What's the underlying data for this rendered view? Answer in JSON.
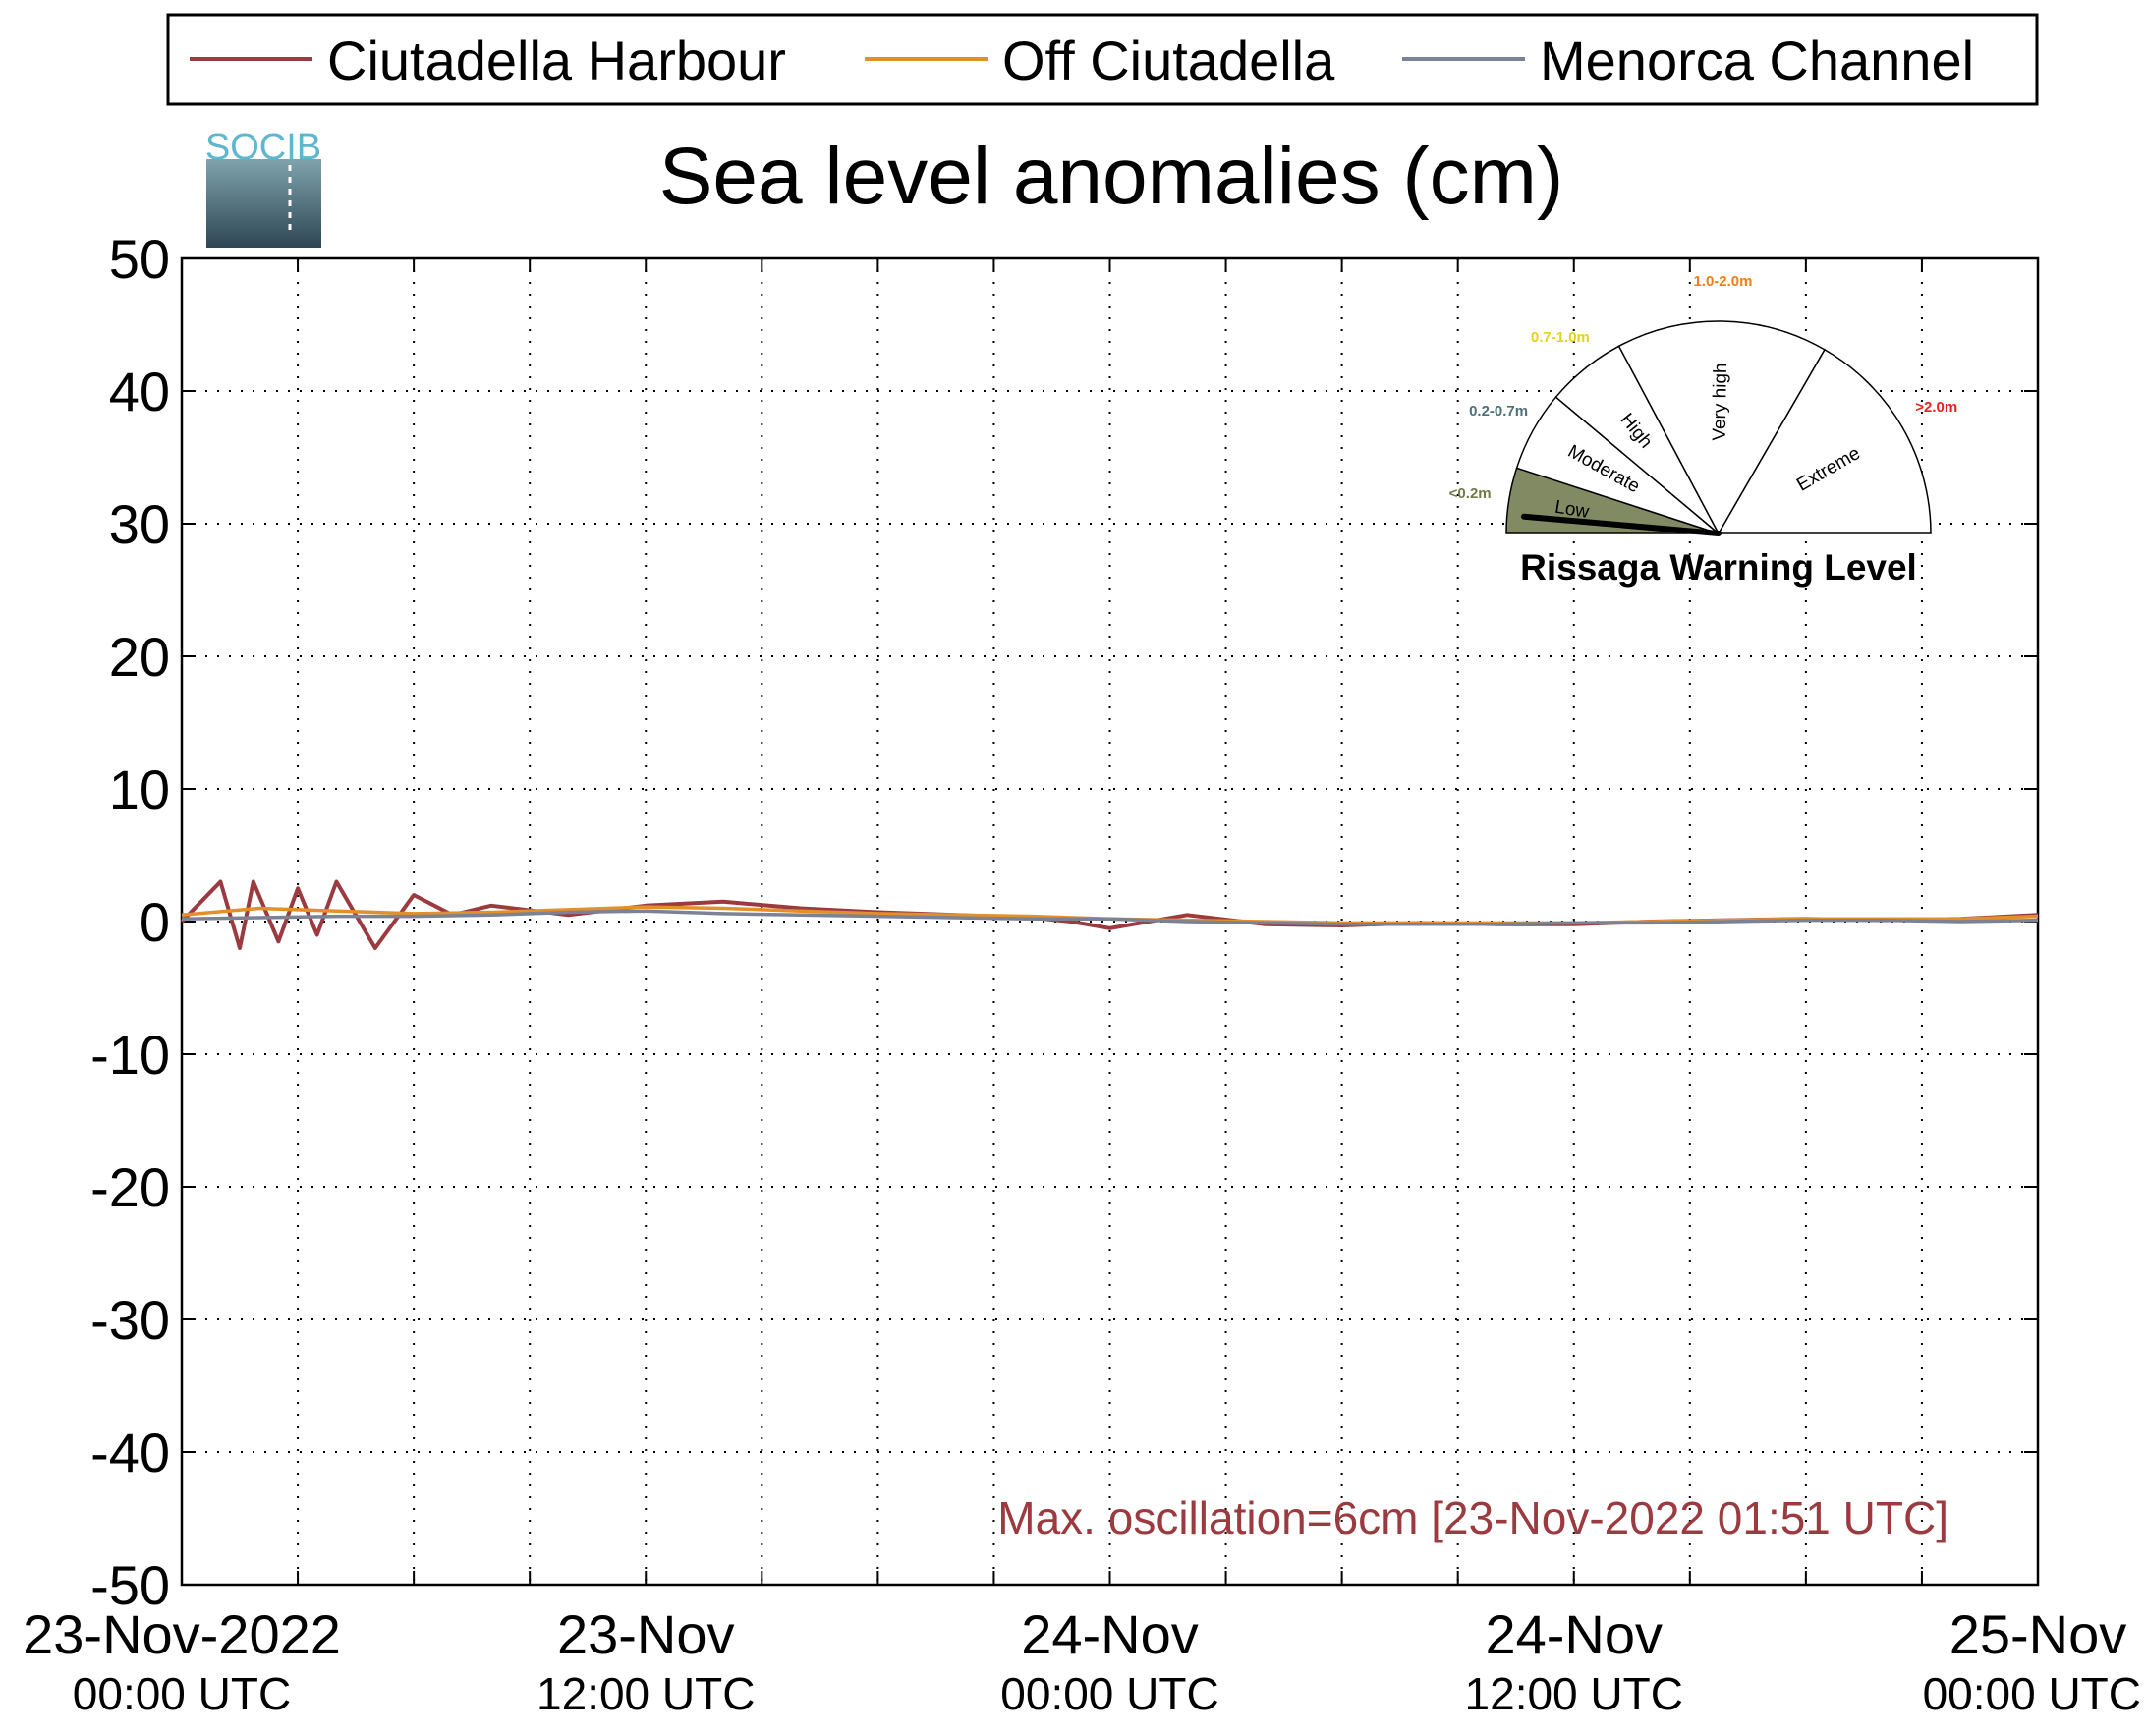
{
  "legend": {
    "entries": [
      {
        "label": "Ciutadella Harbour",
        "color": "#9b3a3f"
      },
      {
        "label": "Off Ciutadella",
        "color": "#e3902a"
      },
      {
        "label": "Menorca Channel",
        "color": "#7b8296"
      }
    ]
  },
  "logo": {
    "text": "SOCIB",
    "color": "#5fb6cf",
    "gradient_top": "#7fa3ad",
    "gradient_bottom": "#2e4654"
  },
  "annotation": {
    "text": "Max. oscillation=6cm [23-Nov-2022 01:51 UTC]",
    "color": "#9b3a3f"
  },
  "gauge": {
    "title": "Rissaga Warning Level",
    "needle_level": "Low",
    "sectors": [
      {
        "name": "Low",
        "range": "<0.2m",
        "range_color": "#6e7c48",
        "fill": "#818a62",
        "filled": true
      },
      {
        "name": "Moderate",
        "range": "0.2-0.7m",
        "range_color": "#4f6f79",
        "fill": "#ffffff",
        "filled": false
      },
      {
        "name": "High",
        "range": "0.7-1.0m",
        "range_color": "#e6d21c",
        "fill": "#ffffff",
        "filled": false
      },
      {
        "name": "Very high",
        "range": "1.0-2.0m",
        "range_color": "#f07f12",
        "fill": "#ffffff",
        "filled": false
      },
      {
        "name": "Extreme",
        "range": ">2.0m",
        "range_color": "#e8211c",
        "fill": "#ffffff",
        "filled": false
      }
    ]
  },
  "chart_data": {
    "type": "line",
    "title": "Sea level anomalies (cm)",
    "xlabel": "",
    "ylabel": "",
    "ylim": [
      -50,
      50
    ],
    "yticks": [
      50,
      40,
      30,
      20,
      10,
      0,
      -10,
      -20,
      -30,
      -40,
      -50
    ],
    "xlim": [
      "2022-11-23 00:00",
      "2022-11-25 00:00"
    ],
    "xticks": [
      {
        "t": "2022-11-23 00:00",
        "line1": "23-Nov-2022",
        "line2": "00:00 UTC"
      },
      {
        "t": "2022-11-23 12:00",
        "line1": "23-Nov",
        "line2": "12:00 UTC"
      },
      {
        "t": "2022-11-24 00:00",
        "line1": "24-Nov",
        "line2": "00:00 UTC"
      },
      {
        "t": "2022-11-24 12:00",
        "line1": "24-Nov",
        "line2": "12:00 UTC"
      },
      {
        "t": "2022-11-25 00:00",
        "line1": "25-Nov",
        "line2": "00:00 UTC"
      }
    ],
    "grid": true,
    "legend_position": "top",
    "series": [
      {
        "name": "Ciutadella Harbour",
        "color": "#9b3a3f",
        "x": [
          "2022-11-23 00:00",
          "2022-11-23 00:30",
          "2022-11-23 01:00",
          "2022-11-23 01:30",
          "2022-11-23 01:51",
          "2022-11-23 02:30",
          "2022-11-23 03:00",
          "2022-11-23 03:30",
          "2022-11-23 04:00",
          "2022-11-23 05:00",
          "2022-11-23 06:00",
          "2022-11-23 07:00",
          "2022-11-23 08:00",
          "2022-11-23 10:00",
          "2022-11-23 12:00",
          "2022-11-23 14:00",
          "2022-11-23 16:00",
          "2022-11-23 18:00",
          "2022-11-23 20:00",
          "2022-11-23 22:00",
          "2022-11-23 23:00",
          "2022-11-24 00:00",
          "2022-11-24 02:00",
          "2022-11-24 04:00",
          "2022-11-24 06:00",
          "2022-11-24 08:00",
          "2022-11-24 10:00",
          "2022-11-24 12:00",
          "2022-11-24 14:00",
          "2022-11-24 16:00",
          "2022-11-24 18:00",
          "2022-11-24 20:00",
          "2022-11-24 22:00",
          "2022-11-25 00:00"
        ],
        "y": [
          0,
          1.5,
          3,
          -2,
          3,
          -1.5,
          2.5,
          -1,
          3,
          -2,
          2,
          0.5,
          1.2,
          0.5,
          1.2,
          1.5,
          1.0,
          0.7,
          0.5,
          0.3,
          0,
          -0.5,
          0.5,
          -0.2,
          -0.3,
          -0.1,
          -0.2,
          -0.2,
          0,
          0.1,
          0.2,
          0.1,
          0.2,
          0.5
        ]
      },
      {
        "name": "Off Ciutadella",
        "color": "#e3902a",
        "x": [
          "2022-11-23 00:00",
          "2022-11-23 02:00",
          "2022-11-23 04:00",
          "2022-11-23 06:00",
          "2022-11-23 08:00",
          "2022-11-23 10:00",
          "2022-11-23 12:00",
          "2022-11-23 14:00",
          "2022-11-23 16:00",
          "2022-11-23 18:00",
          "2022-11-23 20:00",
          "2022-11-23 22:00",
          "2022-11-24 00:00",
          "2022-11-24 02:00",
          "2022-11-24 04:00",
          "2022-11-24 06:00",
          "2022-11-24 08:00",
          "2022-11-24 10:00",
          "2022-11-24 12:00",
          "2022-11-24 14:00",
          "2022-11-24 16:00",
          "2022-11-24 18:00",
          "2022-11-24 20:00",
          "2022-11-24 22:00",
          "2022-11-25 00:00"
        ],
        "y": [
          0.5,
          1.0,
          0.8,
          0.6,
          0.7,
          0.9,
          1.1,
          1.0,
          0.8,
          0.6,
          0.5,
          0.4,
          0.2,
          0.1,
          0.0,
          -0.1,
          -0.1,
          -0.1,
          -0.1,
          0.0,
          0.1,
          0.2,
          0.2,
          0.2,
          0.4
        ]
      },
      {
        "name": "Menorca Channel",
        "color": "#7b8296",
        "x": [
          "2022-11-23 00:00",
          "2022-11-23 02:00",
          "2022-11-23 04:00",
          "2022-11-23 06:00",
          "2022-11-23 08:00",
          "2022-11-23 10:00",
          "2022-11-23 12:00",
          "2022-11-23 14:00",
          "2022-11-23 16:00",
          "2022-11-23 18:00",
          "2022-11-23 20:00",
          "2022-11-23 22:00",
          "2022-11-24 00:00",
          "2022-11-24 02:00",
          "2022-11-24 04:00",
          "2022-11-24 06:00",
          "2022-11-24 08:00",
          "2022-11-24 10:00",
          "2022-11-24 12:00",
          "2022-11-24 14:00",
          "2022-11-24 16:00",
          "2022-11-24 18:00",
          "2022-11-24 20:00",
          "2022-11-24 22:00",
          "2022-11-25 00:00"
        ],
        "y": [
          0.2,
          0.3,
          0.4,
          0.4,
          0.5,
          0.7,
          0.8,
          0.6,
          0.5,
          0.4,
          0.3,
          0.2,
          0.2,
          0.0,
          -0.1,
          -0.2,
          -0.2,
          -0.2,
          -0.1,
          -0.1,
          0.0,
          0.1,
          0.1,
          0.0,
          0.1
        ]
      }
    ]
  }
}
